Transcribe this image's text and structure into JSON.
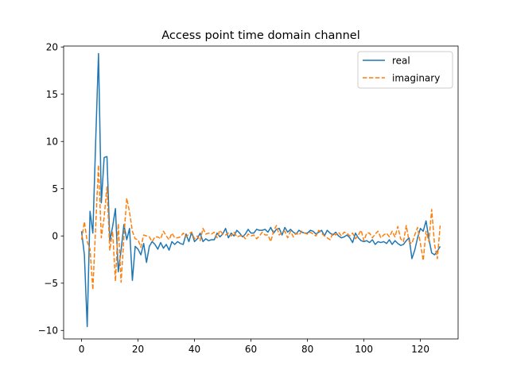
{
  "chart_data": {
    "type": "line",
    "title": "Access point time domain channel",
    "xlabel": "",
    "ylabel": "",
    "xlim": [
      -6.35,
      133.35
    ],
    "ylim": [
      -10.9,
      20.1
    ],
    "xticks": [
      0,
      20,
      40,
      60,
      80,
      100,
      120
    ],
    "yticks": [
      -10,
      -5,
      0,
      5,
      10,
      15,
      20
    ],
    "grid": false,
    "legend_position": "top-right",
    "x": [
      0,
      1,
      2,
      3,
      4,
      5,
      6,
      7,
      8,
      9,
      10,
      11,
      12,
      13,
      14,
      15,
      16,
      17,
      18,
      19,
      20,
      21,
      22,
      23,
      24,
      25,
      26,
      27,
      28,
      29,
      30,
      31,
      32,
      33,
      34,
      35,
      36,
      37,
      38,
      39,
      40,
      41,
      42,
      43,
      44,
      45,
      46,
      47,
      48,
      49,
      50,
      51,
      52,
      53,
      54,
      55,
      56,
      57,
      58,
      59,
      60,
      61,
      62,
      63,
      64,
      65,
      66,
      67,
      68,
      69,
      70,
      71,
      72,
      73,
      74,
      75,
      76,
      77,
      78,
      79,
      80,
      81,
      82,
      83,
      84,
      85,
      86,
      87,
      88,
      89,
      90,
      91,
      92,
      93,
      94,
      95,
      96,
      97,
      98,
      99,
      100,
      101,
      102,
      103,
      104,
      105,
      106,
      107,
      108,
      109,
      110,
      111,
      112,
      113,
      114,
      115,
      116,
      117,
      118,
      119,
      120,
      121,
      122,
      123,
      124,
      125,
      126,
      127
    ],
    "series": [
      {
        "name": "real",
        "color": "#1f77b4",
        "style": "solid",
        "values": [
          0.5,
          -2.0,
          -9.6,
          2.6,
          0.3,
          10.0,
          19.3,
          3.5,
          8.3,
          8.4,
          -0.5,
          1.0,
          2.9,
          -3.8,
          -1.5,
          1.2,
          -0.4,
          0.8,
          -4.7,
          -1.1,
          -1.4,
          -2.0,
          -0.8,
          -2.8,
          -1.1,
          -0.6,
          -0.9,
          -1.4,
          -0.7,
          -1.3,
          -0.9,
          -1.5,
          -0.6,
          -0.9,
          -0.6,
          -0.8,
          -0.9,
          0.2,
          -0.6,
          0.4,
          -0.6,
          -0.3,
          0.3,
          -0.6,
          -0.3,
          -0.5,
          -0.4,
          -0.4,
          0.3,
          -0.1,
          0.2,
          0.8,
          -0.2,
          0.3,
          0.0,
          0.6,
          0.3,
          -0.1,
          0.2,
          0.7,
          0.3,
          0.3,
          0.7,
          0.6,
          0.6,
          0.7,
          0.4,
          0.9,
          0.3,
          0.7,
          0.8,
          0.1,
          0.9,
          0.4,
          0.7,
          0.4,
          0.2,
          0.6,
          0.4,
          0.3,
          0.3,
          0.6,
          0.5,
          0.2,
          0.4,
          0.6,
          0.0,
          0.6,
          0.3,
          0.1,
          0.4,
          0.0,
          -0.2,
          -0.1,
          0.1,
          -0.2,
          -0.7,
          0.3,
          -0.2,
          -0.5,
          -0.6,
          -0.5,
          -0.7,
          -0.4,
          -0.9,
          -0.6,
          -0.7,
          -0.6,
          -0.8,
          -0.4,
          -0.9,
          -0.5,
          -0.8,
          -1.0,
          -0.9,
          -0.5,
          -0.2,
          -2.4,
          -1.5,
          -0.2,
          0.8,
          0.5,
          1.6,
          -0.3,
          -1.8,
          -2.0,
          -1.6,
          -1.1
        ]
      },
      {
        "name": "imaginary",
        "color": "#ff7f0e",
        "style": "dashed",
        "values": [
          -0.4,
          1.5,
          -0.6,
          -1.4,
          -5.7,
          1.0,
          7.5,
          -0.2,
          2.0,
          5.2,
          -1.5,
          0.5,
          -4.8,
          1.3,
          -4.9,
          -0.1,
          4.0,
          2.5,
          0.5,
          -0.3,
          -0.4,
          -1.2,
          0.1,
          0.0,
          -0.1,
          -0.6,
          -0.1,
          -0.1,
          -0.3,
          0.5,
          0.0,
          -0.4,
          0.3,
          -0.2,
          -0.2,
          -0.1,
          0.3,
          -0.1,
          0.2,
          0.4,
          -0.3,
          0.0,
          -0.5,
          0.8,
          0.2,
          0.3,
          0.2,
          0.4,
          -0.2,
          0.6,
          0.2,
          0.1,
          0.3,
          0.0,
          0.4,
          -0.1,
          0.0,
          0.1,
          -0.3,
          0.2,
          0.0,
          0.1,
          -0.3,
          0.0,
          0.4,
          0.1,
          0.1,
          -0.6,
          0.5,
          1.1,
          0.1,
          0.4,
          0.5,
          -0.2,
          0.5,
          -0.1,
          0.3,
          0.1,
          0.5,
          0.3,
          0.2,
          0.4,
          0.2,
          0.0,
          0.6,
          0.3,
          0.0,
          -0.2,
          -0.4,
          0.3,
          0.1,
          0.4,
          0.0,
          0.4,
          0.3,
          0.0,
          0.3,
          -0.3,
          0.1,
          0.6,
          -0.5,
          0.3,
          0.3,
          -0.2,
          0.2,
          0.5,
          -0.2,
          0.1,
          0.3,
          -0.1,
          0.5,
          -0.1,
          1.0,
          -0.3,
          -0.6,
          1.1,
          -0.6,
          -0.8,
          0.1,
          0.9,
          -0.8,
          -2.6,
          0.5,
          -0.6,
          2.8,
          -0.9,
          -2.4,
          1.1
        ]
      }
    ]
  }
}
